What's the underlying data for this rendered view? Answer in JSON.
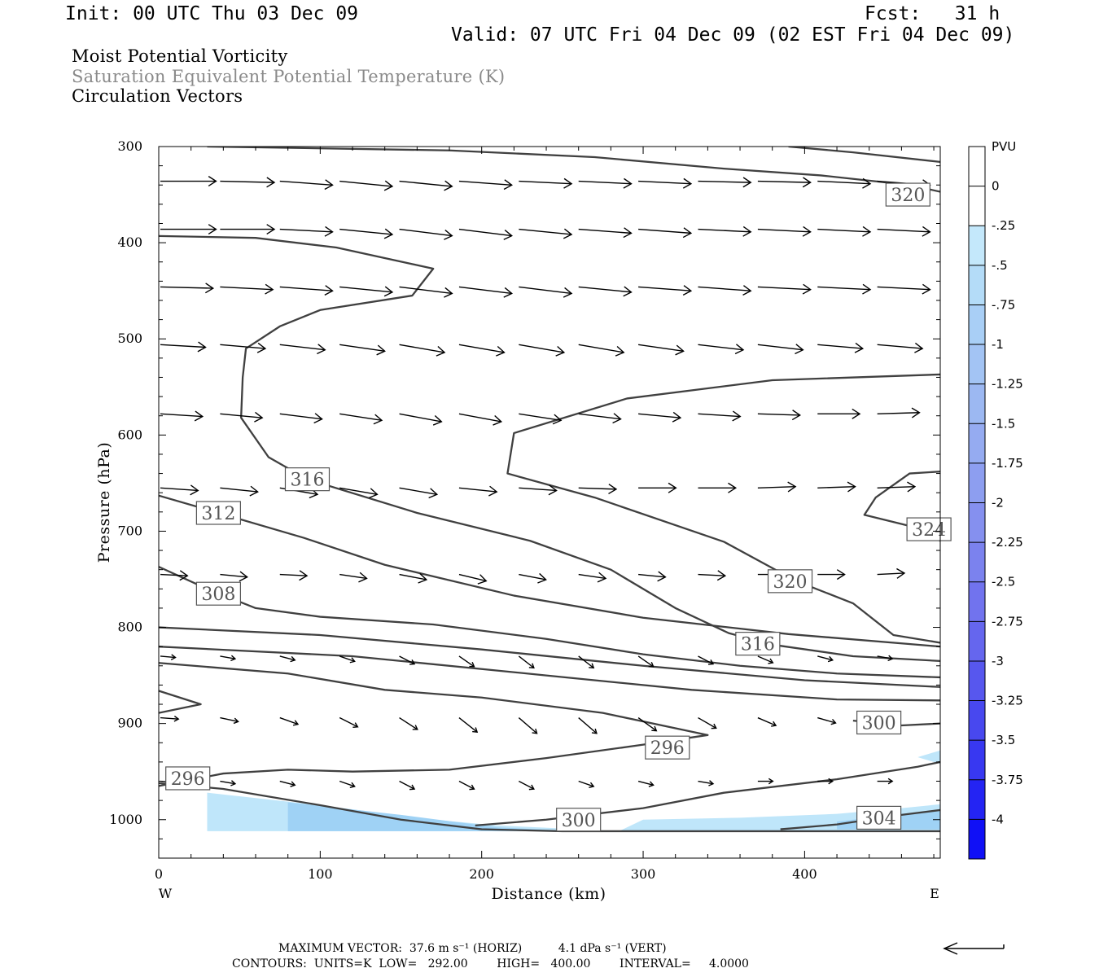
{
  "header": {
    "init": "Init: 00 UTC Thu 03 Dec 09",
    "fcst": "Fcst:   31 h",
    "valid": "Valid: 07 UTC Fri 04 Dec 09 (02 EST Fri 04 Dec 09)"
  },
  "titles": {
    "line1": "Moist Potential Vorticity",
    "line2": "Saturation Equivalent Potential Temperature (K)",
    "line3": "Circulation Vectors"
  },
  "footer": {
    "max_vector": "MAXIMUM VECTOR:  37.6 m s⁻¹ (HORIZ)          4.1 dPa s⁻¹ (VERT)",
    "contours": "CONTOURS:  UNITS=K  LOW=   292.00        HIGH=   400.00        INTERVAL=     4.0000"
  },
  "colors": {
    "contour": "#404040",
    "arrow": "#000000",
    "pv_light": "#bfe6fa",
    "pv_mid": "#9fd2f5",
    "pv_dark": "#8f9ff0"
  },
  "chart_data": {
    "type": "contour-cross-section",
    "xlabel": "Distance (km)",
    "ylabel": "Pressure (hPa)",
    "xlim": [
      0,
      484
    ],
    "ylim": [
      1040,
      300
    ],
    "x_ticks": [
      0,
      100,
      200,
      300,
      400
    ],
    "y_ticks": [
      300,
      400,
      500,
      600,
      700,
      800,
      900,
      1000
    ],
    "x_end_labels": {
      "left": "W",
      "right": "E"
    },
    "colorbar": {
      "unit": "PVU",
      "ticks": [
        "0",
        "-.25",
        "-.5",
        "-.75",
        "-1",
        "-1.25",
        "-1.5",
        "-1.75",
        "-2",
        "-2.25",
        "-2.5",
        "-2.75",
        "-3",
        "-3.25",
        "-3.5",
        "-3.75",
        "-4"
      ],
      "colors": [
        "#ffffff",
        "#ffffff",
        "#c4e8fb",
        "#b4dcf8",
        "#a9cff6",
        "#a3c4f4",
        "#9cb8f2",
        "#95abf1",
        "#8d9ef0",
        "#8590ef",
        "#7b82ee",
        "#7173ee",
        "#6566ee",
        "#5757ee",
        "#4848ef",
        "#3838f1",
        "#2424f3",
        "#1010f6"
      ]
    },
    "contour_labels": [
      {
        "text": "320",
        "x": 464,
        "p": 350
      },
      {
        "text": "316",
        "x": 92,
        "p": 646
      },
      {
        "text": "312",
        "x": 37,
        "p": 681
      },
      {
        "text": "324",
        "x": 477,
        "p": 698
      },
      {
        "text": "320",
        "x": 391,
        "p": 752
      },
      {
        "text": "308",
        "x": 37,
        "p": 765
      },
      {
        "text": "316",
        "x": 371,
        "p": 817
      },
      {
        "text": "300",
        "x": 446,
        "p": 899
      },
      {
        "text": "296",
        "x": 315,
        "p": 925
      },
      {
        "text": "296",
        "x": 18,
        "p": 957
      },
      {
        "text": "300",
        "x": 260,
        "p": 1000
      },
      {
        "text": "304",
        "x": 446,
        "p": 998
      }
    ],
    "contours": [
      {
        "value": 320,
        "points": [
          [
            30,
            300
          ],
          [
            180,
            304
          ],
          [
            270,
            311
          ],
          [
            350,
            323
          ],
          [
            410,
            330
          ],
          [
            465,
            340
          ],
          [
            484,
            347
          ]
        ]
      },
      {
        "value": 320,
        "points": [
          [
            390,
            300
          ],
          [
            430,
            306
          ],
          [
            484,
            316
          ]
        ]
      },
      {
        "value": 316,
        "points": [
          [
            0,
            393
          ],
          [
            60,
            395
          ],
          [
            110,
            405
          ],
          [
            170,
            427
          ],
          [
            157,
            455
          ],
          [
            100,
            470
          ],
          [
            75,
            487
          ],
          [
            54,
            510
          ],
          [
            52,
            540
          ],
          [
            51,
            582
          ],
          [
            68,
            623
          ],
          [
            92,
            646
          ],
          [
            160,
            681
          ],
          [
            230,
            710
          ],
          [
            280,
            740
          ],
          [
            320,
            780
          ],
          [
            353,
            806
          ],
          [
            380,
            818
          ],
          [
            430,
            830
          ],
          [
            484,
            835
          ]
        ]
      },
      {
        "value": 320,
        "points": [
          [
            484,
            537
          ],
          [
            380,
            543
          ],
          [
            290,
            562
          ],
          [
            220,
            598
          ],
          [
            216,
            640
          ],
          [
            270,
            665
          ],
          [
            350,
            711
          ],
          [
            395,
            752
          ],
          [
            430,
            775
          ],
          [
            455,
            808
          ],
          [
            484,
            816
          ]
        ]
      },
      {
        "value": 324,
        "points": [
          [
            484,
            638
          ],
          [
            465,
            640
          ],
          [
            444,
            665
          ],
          [
            437,
            683
          ],
          [
            466,
            695
          ],
          [
            484,
            710
          ]
        ]
      },
      {
        "value": 312,
        "points": [
          [
            0,
            663
          ],
          [
            37,
            681
          ],
          [
            90,
            707
          ],
          [
            140,
            735
          ],
          [
            220,
            767
          ],
          [
            300,
            790
          ],
          [
            390,
            807
          ],
          [
            484,
            820
          ]
        ]
      },
      {
        "value": 308,
        "points": [
          [
            0,
            737
          ],
          [
            30,
            760
          ],
          [
            60,
            780
          ],
          [
            100,
            789
          ],
          [
            170,
            797
          ],
          [
            240,
            812
          ],
          [
            300,
            828
          ],
          [
            360,
            840
          ],
          [
            420,
            848
          ],
          [
            484,
            852
          ]
        ]
      },
      {
        "value": 304,
        "points": [
          [
            0,
            800
          ],
          [
            100,
            808
          ],
          [
            200,
            823
          ],
          [
            300,
            840
          ],
          [
            400,
            855
          ],
          [
            484,
            862
          ]
        ]
      },
      {
        "value": 300,
        "points": [
          [
            0,
            820
          ],
          [
            120,
            830
          ],
          [
            240,
            850
          ],
          [
            330,
            865
          ],
          [
            420,
            875
          ],
          [
            484,
            876
          ]
        ]
      },
      {
        "value": 300,
        "points": [
          [
            0,
            837
          ],
          [
            80,
            848
          ],
          [
            140,
            865
          ],
          [
            200,
            873
          ],
          [
            275,
            889
          ],
          [
            340,
            912
          ],
          [
            300,
            922
          ],
          [
            240,
            936
          ],
          [
            180,
            948
          ],
          [
            120,
            950
          ],
          [
            80,
            948
          ],
          [
            40,
            952
          ],
          [
            0,
            965
          ]
        ]
      },
      {
        "value": 296,
        "points": [
          [
            0,
            866
          ],
          [
            26,
            880
          ],
          [
            0,
            889
          ]
        ]
      },
      {
        "value": 300,
        "points": [
          [
            430,
            897
          ],
          [
            460,
            902
          ],
          [
            484,
            900
          ]
        ]
      },
      {
        "value": 296,
        "points": [
          [
            0,
            962
          ],
          [
            40,
            968
          ],
          [
            100,
            985
          ],
          [
            150,
            1000
          ],
          [
            200,
            1010
          ],
          [
            250,
            1012
          ],
          [
            484,
            1012
          ]
        ]
      },
      {
        "value": 300,
        "points": [
          [
            196,
            1006
          ],
          [
            240,
            1000
          ],
          [
            300,
            988
          ],
          [
            350,
            972
          ],
          [
            420,
            958
          ],
          [
            470,
            945
          ],
          [
            484,
            940
          ]
        ]
      },
      {
        "value": 304,
        "points": [
          [
            385,
            1010
          ],
          [
            420,
            1005
          ],
          [
            460,
            995
          ],
          [
            484,
            990
          ]
        ]
      }
    ],
    "shading": [
      {
        "level": "-.25",
        "points": [
          [
            30,
            972
          ],
          [
            100,
            985
          ],
          [
            170,
            1000
          ],
          [
            210,
            1006
          ],
          [
            260,
            1010
          ],
          [
            285,
            1012
          ],
          [
            300,
            1000
          ],
          [
            360,
            998
          ],
          [
            420,
            994
          ],
          [
            460,
            988
          ],
          [
            484,
            984
          ],
          [
            484,
            1012
          ],
          [
            30,
            1012
          ]
        ]
      },
      {
        "level": "-.5",
        "points": [
          [
            80,
            982
          ],
          [
            150,
            995
          ],
          [
            210,
            1008
          ],
          [
            260,
            1012
          ],
          [
            80,
            1012
          ]
        ]
      },
      {
        "level": "-.5",
        "points": [
          [
            420,
            1002
          ],
          [
            460,
            994
          ],
          [
            484,
            990
          ],
          [
            484,
            1010
          ],
          [
            420,
            1010
          ]
        ]
      },
      {
        "level": "-.25",
        "points": [
          [
            470,
            935
          ],
          [
            484,
            928
          ],
          [
            484,
            942
          ]
        ]
      }
    ],
    "vectors": {
      "x": [
        0,
        37,
        74,
        111,
        148,
        185,
        222,
        259,
        296,
        333,
        370,
        407,
        444
      ],
      "rows": [
        {
          "p": 336,
          "dx": [
            37,
            36,
            35,
            35,
            35,
            35,
            35,
            35,
            35,
            35,
            35,
            35,
            35
          ],
          "dp": [
            0,
            1,
            3,
            4,
            4,
            3,
            2,
            2,
            2,
            1,
            1,
            2,
            3
          ]
        },
        {
          "p": 386,
          "dx": [
            37,
            36,
            35,
            35,
            35,
            35,
            35,
            35,
            35,
            35,
            35,
            35,
            35
          ],
          "dp": [
            0,
            0,
            2,
            4,
            5,
            5,
            4,
            3,
            3,
            2,
            2,
            2,
            2
          ]
        },
        {
          "p": 446,
          "dx": [
            35,
            35,
            35,
            35,
            35,
            35,
            35,
            35,
            35,
            35,
            35,
            35,
            35
          ],
          "dp": [
            1,
            2,
            3,
            4,
            5,
            5,
            5,
            4,
            3,
            3,
            2,
            2,
            2
          ]
        },
        {
          "p": 506,
          "dx": [
            30,
            30,
            30,
            30,
            30,
            30,
            30,
            30,
            30,
            30,
            30,
            30,
            30
          ],
          "dp": [
            2,
            3,
            4,
            5,
            6,
            6,
            6,
            6,
            5,
            4,
            4,
            3,
            3
          ]
        },
        {
          "p": 578,
          "dx": [
            28,
            28,
            28,
            28,
            28,
            28,
            28,
            28,
            28,
            28,
            28,
            28,
            28
          ],
          "dp": [
            2,
            3,
            4,
            5,
            6,
            6,
            5,
            4,
            3,
            2,
            1,
            0,
            -1
          ]
        },
        {
          "p": 655,
          "dx": [
            25,
            25,
            25,
            25,
            25,
            25,
            25,
            25,
            25,
            25,
            25,
            25,
            25
          ],
          "dp": [
            2,
            3,
            5,
            5,
            5,
            3,
            2,
            1,
            0,
            0,
            -1,
            -1,
            -1
          ]
        },
        {
          "p": 745,
          "dx": [
            18,
            18,
            18,
            18,
            18,
            18,
            18,
            18,
            18,
            18,
            18,
            18,
            18
          ],
          "dp": [
            1,
            2,
            1,
            3,
            4,
            5,
            4,
            3,
            2,
            1,
            0,
            0,
            -1
          ]
        },
        {
          "p": 830,
          "dx": [
            10,
            10,
            10,
            10,
            10,
            10,
            10,
            10,
            10,
            10,
            10,
            10,
            10
          ],
          "dp": [
            1,
            2,
            3,
            4,
            6,
            8,
            9,
            9,
            8,
            6,
            5,
            3,
            2
          ]
        },
        {
          "p": 894,
          "dx": [
            12,
            12,
            12,
            12,
            12,
            12,
            12,
            12,
            12,
            12,
            12,
            12,
            12
          ],
          "dp": [
            1,
            3,
            5,
            7,
            9,
            11,
            12,
            12,
            10,
            8,
            6,
            4,
            2
          ]
        },
        {
          "p": 960,
          "dx": [
            10,
            10,
            10,
            10,
            10,
            10,
            10,
            10,
            10,
            10,
            10,
            10,
            10
          ],
          "dp": [
            1,
            2,
            3,
            4,
            6,
            6,
            6,
            4,
            3,
            2,
            0,
            0,
            0
          ]
        }
      ]
    }
  }
}
